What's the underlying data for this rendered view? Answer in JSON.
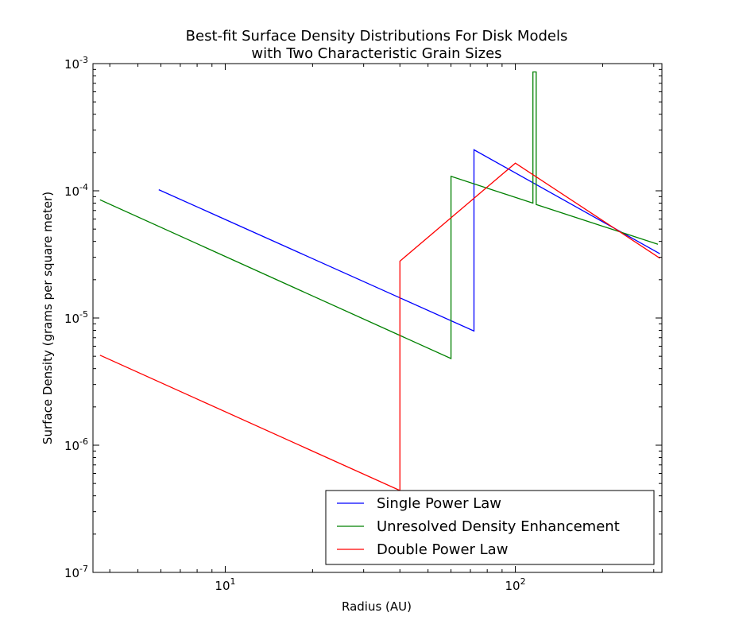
{
  "chart_data": {
    "type": "line",
    "title": [
      "Best-fit Surface Density Distributions For Disk Models",
      "with Two Characteristic Grain Sizes"
    ],
    "xlabel": "Radius (AU)",
    "ylabel": "Surface Density (grams per square meter)",
    "x_scale": "log",
    "y_scale": "log",
    "xlim": [
      3.5,
      320
    ],
    "ylim": [
      1e-07,
      0.001
    ],
    "x_ticks": [
      {
        "value": 10,
        "base": "10",
        "exp": "1"
      },
      {
        "value": 100,
        "base": "10",
        "exp": "2"
      }
    ],
    "y_ticks": [
      {
        "value": 1e-07,
        "base": "10",
        "exp": "-7"
      },
      {
        "value": 1e-06,
        "base": "10",
        "exp": "-6"
      },
      {
        "value": 1e-05,
        "base": "10",
        "exp": "-5"
      },
      {
        "value": 0.0001,
        "base": "10",
        "exp": "-4"
      },
      {
        "value": 0.001,
        "base": "10",
        "exp": "-3"
      }
    ],
    "grid": false,
    "legend_position": "lower-right",
    "series": [
      {
        "name": "Single Power Law",
        "color": "#0000ff",
        "points": [
          [
            5.9,
            0.000102
          ],
          [
            72,
            7.9e-06
          ],
          [
            72,
            0.00021
          ],
          [
            315,
            3.2e-05
          ]
        ]
      },
      {
        "name": "Unresolved Density Enhancement",
        "color": "#008000",
        "points": [
          [
            3.7,
            8.5e-05
          ],
          [
            60,
            4.8e-06
          ],
          [
            60,
            0.00013
          ],
          [
            115,
            8e-05
          ],
          [
            115,
            0.00086
          ],
          [
            118,
            0.00086
          ],
          [
            118,
            7.8e-05
          ],
          [
            310,
            3.8e-05
          ]
        ]
      },
      {
        "name": "Double Power Law",
        "color": "#ff0000",
        "points": [
          [
            3.7,
            5.1e-06
          ],
          [
            40,
            4.4e-07
          ],
          [
            40,
            2.8e-05
          ],
          [
            100,
            0.000165
          ],
          [
            315,
            2.95e-05
          ]
        ]
      }
    ]
  }
}
